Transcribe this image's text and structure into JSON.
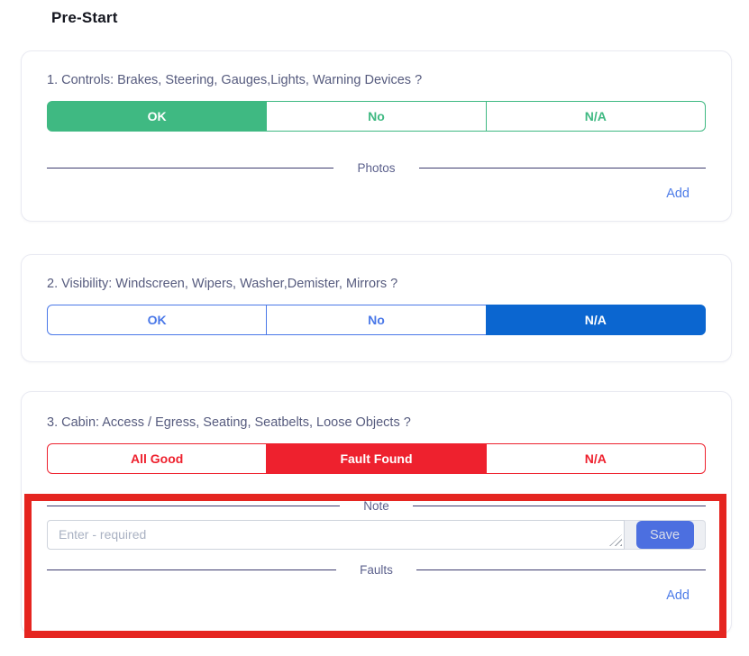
{
  "title": "Pre-Start",
  "colors": {
    "green": "#3fb982",
    "blue_outline": "#4a78e8",
    "blue_selected": "#0b66d0",
    "red": "#ee212e",
    "link_blue": "#4d7ce8",
    "save_blue": "#4c6fe0",
    "divider_line": "#3d3c6e",
    "divider_text": "#5b608c",
    "question_text": "#565b7e",
    "annotation_red": "#e52520"
  },
  "questions": [
    {
      "label": "1. Controls: Brakes, Steering, Gauges,Lights, Warning Devices ?",
      "options": [
        {
          "label": "OK",
          "selected": true
        },
        {
          "label": "No",
          "selected": false
        },
        {
          "label": "N/A",
          "selected": false
        }
      ],
      "photos": {
        "divider_label": "Photos",
        "add_label": "Add"
      }
    },
    {
      "label": "2. Visibility: Windscreen, Wipers, Washer,Demister, Mirrors ?",
      "options": [
        {
          "label": "OK",
          "selected": false
        },
        {
          "label": "No",
          "selected": false
        },
        {
          "label": "N/A",
          "selected": true
        }
      ]
    },
    {
      "label": "3. Cabin: Access / Egress, Seating, Seatbelts, Loose Objects ?",
      "options": [
        {
          "label": "All Good",
          "selected": false
        },
        {
          "label": "Fault Found",
          "selected": true
        },
        {
          "label": "N/A",
          "selected": false
        }
      ],
      "note": {
        "divider_label": "Note",
        "placeholder": "Enter - required",
        "save_label": "Save"
      },
      "faults": {
        "divider_label": "Faults",
        "add_label": "Add"
      }
    }
  ]
}
